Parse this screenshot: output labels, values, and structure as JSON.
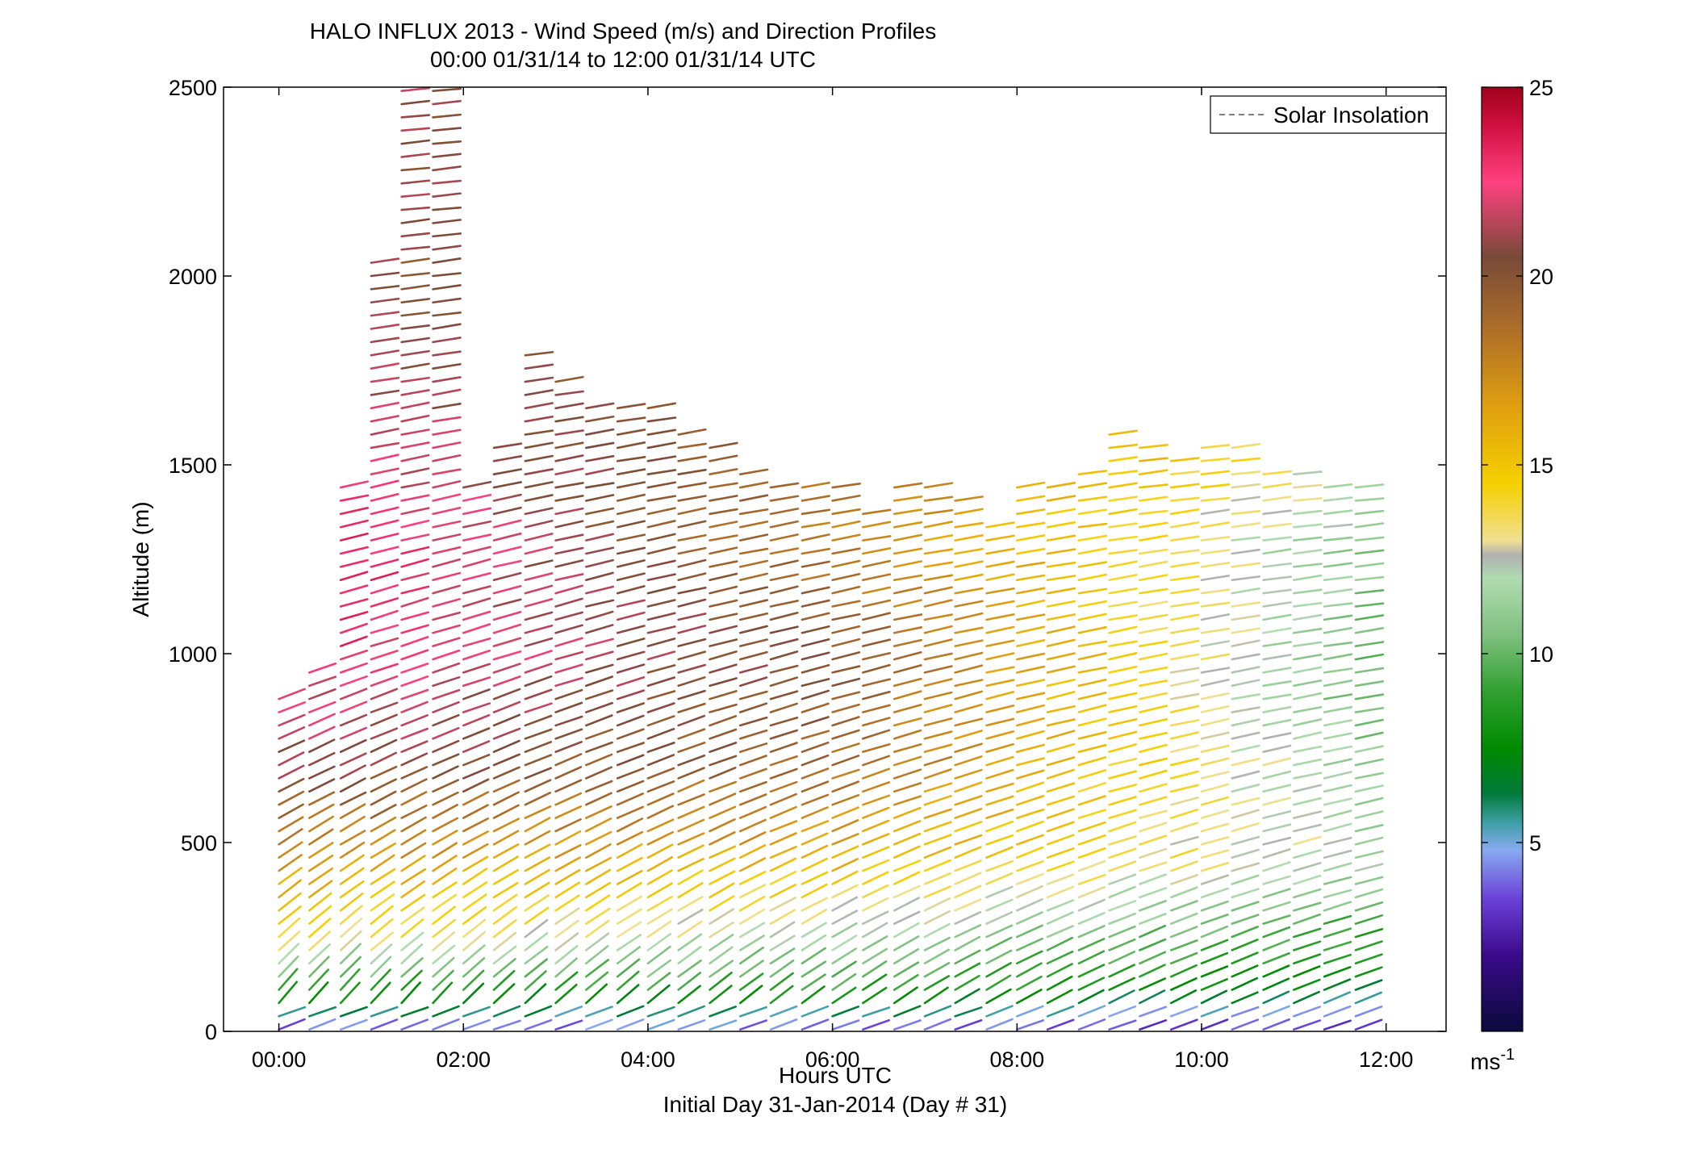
{
  "chart_data": {
    "type": "scatter",
    "title": "HALO INFLUX 2013 - Wind Speed (m/s) and Direction Profiles",
    "subtitle": "00:00 01/31/14 to 12:00 01/31/14  UTC",
    "xlabel": "Hours UTC",
    "xlabel2": "Initial Day 31-Jan-2014 (Day # 31)",
    "ylabel": "Altitude (m)",
    "xlim": [
      -0.6,
      12.65
    ],
    "ylim": [
      0,
      2500
    ],
    "x_ticks": [
      0,
      2,
      4,
      6,
      8,
      10,
      12
    ],
    "x_tick_labels": [
      "00:00",
      "02:00",
      "04:00",
      "06:00",
      "08:00",
      "10:00",
      "12:00"
    ],
    "y_ticks": [
      0,
      500,
      1000,
      1500,
      2000,
      2500
    ],
    "y_tick_labels": [
      "0",
      "500",
      "1000",
      "1500",
      "2000",
      "2500"
    ],
    "legend": {
      "entries": [
        "Solar Insolation"
      ],
      "placement": "top-right",
      "line_color": "#808080",
      "line_style": "dashed"
    },
    "colorbar": {
      "min": 0,
      "max": 25,
      "ticks": [
        5,
        10,
        15,
        20,
        25
      ],
      "tick_labels": [
        "5",
        "10",
        "15",
        "20",
        "25"
      ],
      "unit_label": "ms",
      "unit_exponent": "-1",
      "colormap": [
        [
          0,
          "#0a0a3c"
        ],
        [
          2,
          "#3a0a8a"
        ],
        [
          3.5,
          "#6a40d8"
        ],
        [
          4.8,
          "#88aaf0"
        ],
        [
          5.5,
          "#40a0a8"
        ],
        [
          6.3,
          "#007a3a"
        ],
        [
          7.5,
          "#008a00"
        ],
        [
          9,
          "#30a030"
        ],
        [
          10.5,
          "#80c080"
        ],
        [
          12,
          "#b0dcb0"
        ],
        [
          12.6,
          "#b0b0b0"
        ],
        [
          13,
          "#f0e090"
        ],
        [
          14.5,
          "#f5d000"
        ],
        [
          16.5,
          "#e0a010"
        ],
        [
          18.5,
          "#b07028"
        ],
        [
          20.5,
          "#784a38"
        ],
        [
          22.5,
          "#ff4080"
        ],
        [
          24,
          "#d01040"
        ],
        [
          25,
          "#a0001a"
        ]
      ]
    },
    "wind_barbs": {
      "description_units": "x = hours UTC, altitude = m, speed = m/s, direction = degrees from",
      "profile_times": [
        0,
        0.33,
        0.67,
        1.0,
        1.33,
        1.67,
        2.0,
        2.33,
        2.67,
        3.0,
        3.33,
        3.67,
        4.0,
        4.33,
        4.67,
        5.0,
        5.33,
        5.67,
        6.0,
        6.33,
        6.67,
        7.0,
        7.33,
        7.67,
        8.0,
        8.33,
        8.67,
        9.0,
        9.33,
        9.67,
        10.0,
        10.33,
        10.67,
        11.0,
        11.33,
        11.67
      ],
      "profile_tops_m": [
        910,
        960,
        1440,
        2040,
        2500,
        2500,
        1450,
        1570,
        1790,
        1740,
        1670,
        1660,
        1660,
        1610,
        1570,
        1490,
        1450,
        1440,
        1450,
        1380,
        1450,
        1450,
        1420,
        1360,
        1450,
        1440,
        1500,
        1580,
        1560,
        1530,
        1560,
        1570,
        1500,
        1480,
        1450,
        1450
      ],
      "altitude_step_m": 35,
      "speed_profile_m": [
        0,
        100,
        250,
        450,
        700,
        1000,
        1300,
        1600,
        2000,
        2500
      ],
      "speed_early_ms": [
        4,
        9,
        14,
        17,
        21,
        23,
        24,
        22,
        21,
        22
      ],
      "speed_mid_ms": [
        4,
        9,
        12,
        16,
        19,
        20,
        18,
        19,
        18,
        18
      ],
      "speed_late_ms": [
        3,
        7,
        9,
        12,
        11,
        10,
        11,
        13,
        14,
        14
      ]
    }
  }
}
